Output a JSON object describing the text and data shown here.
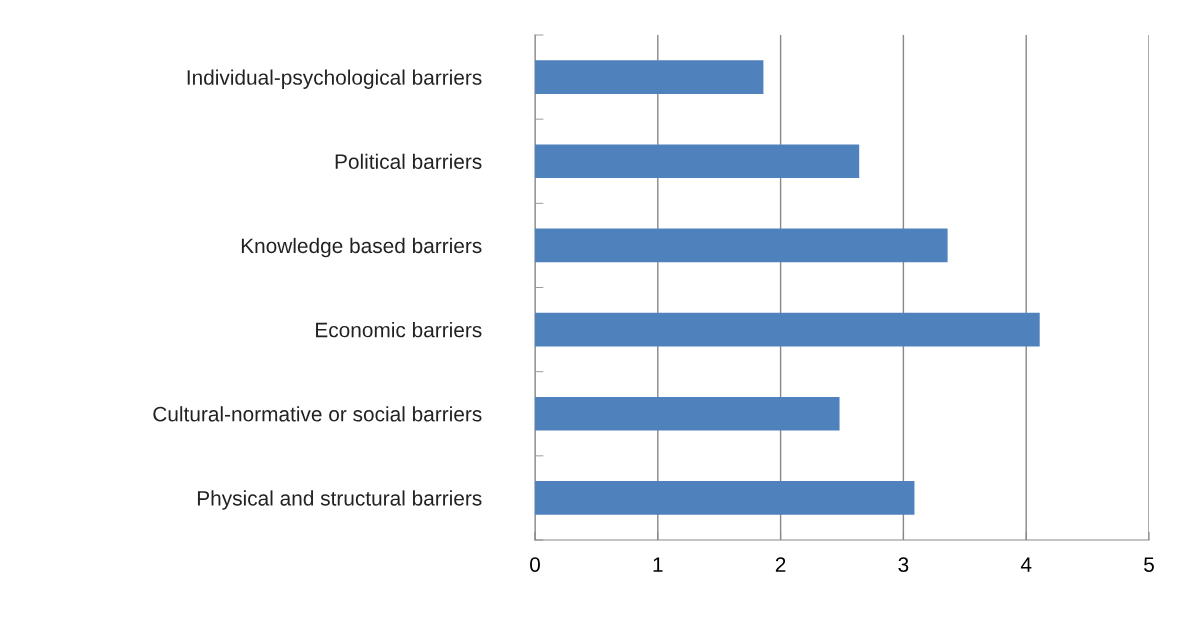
{
  "chart_data": {
    "type": "bar",
    "orientation": "horizontal",
    "categories": [
      "Individual-psychological barriers",
      "Political barriers",
      "Knowledge based barriers",
      "Economic barriers",
      "Cultural-normative or social barriers",
      "Physical and structural barriers"
    ],
    "values": [
      1.86,
      2.64,
      3.36,
      4.11,
      2.48,
      3.09
    ],
    "color": "#4f81bd",
    "xlim": [
      0,
      5
    ],
    "xticks": [
      0,
      1,
      2,
      3,
      4,
      5
    ],
    "grid": "x",
    "legend": false
  }
}
